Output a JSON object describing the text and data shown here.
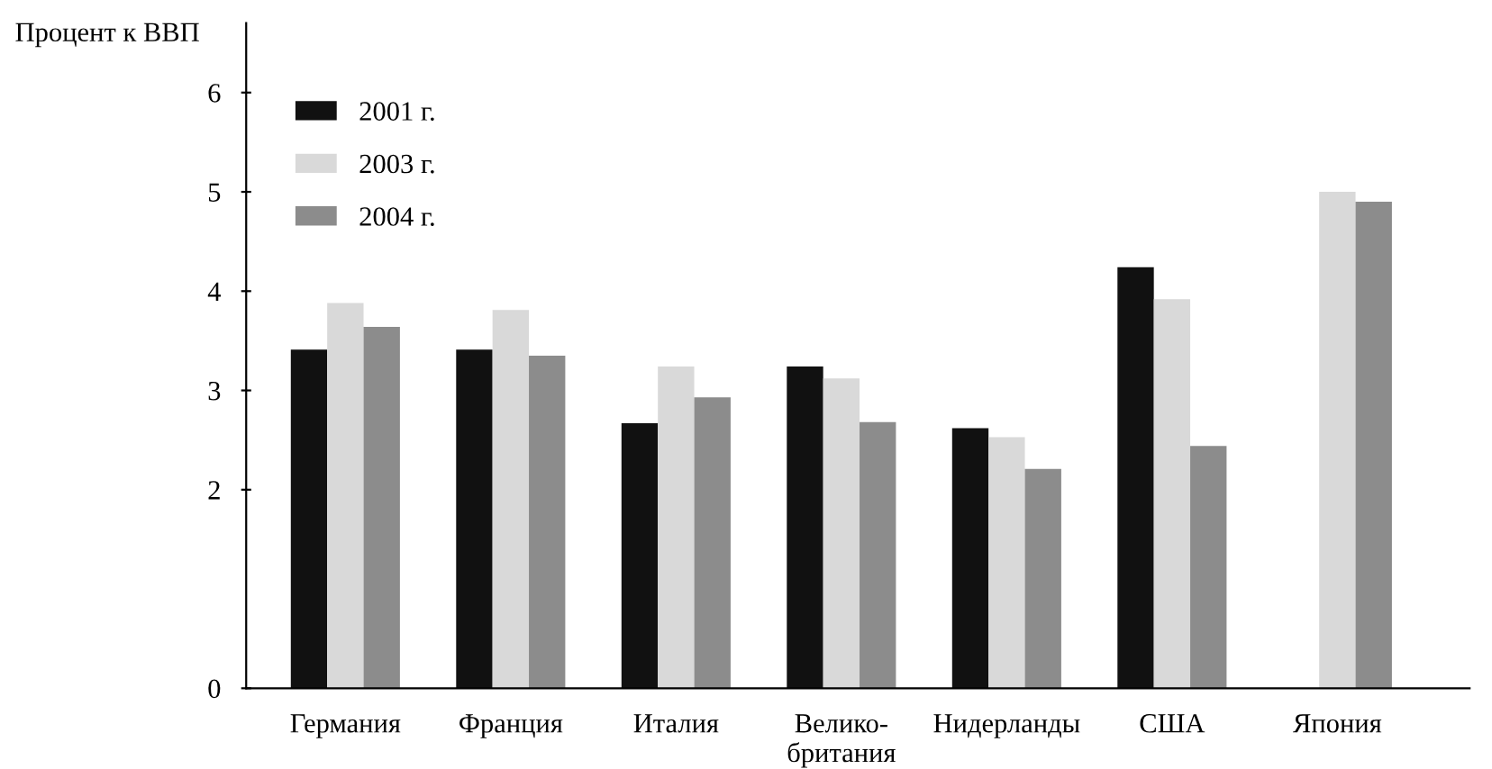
{
  "chart_data": {
    "type": "bar",
    "ylabel": "Процент к ВВП",
    "categories": [
      "Германия",
      "Франция",
      "Италия",
      "Велико-\nбритания",
      "Нидерланды",
      "США",
      "Япония"
    ],
    "series": [
      {
        "name": "2001 г.",
        "color": "#111111",
        "values": [
          3.41,
          3.41,
          2.67,
          3.24,
          2.62,
          4.24,
          null
        ]
      },
      {
        "name": "2003 г.",
        "color": "#d9d9d9",
        "values": [
          3.88,
          3.81,
          3.24,
          3.12,
          2.53,
          3.92,
          5.0
        ]
      },
      {
        "name": "2004 г.",
        "color": "#8c8c8c",
        "values": [
          3.64,
          3.35,
          2.93,
          2.68,
          2.21,
          2.44,
          4.9
        ]
      }
    ],
    "ylim": [
      0,
      6.7
    ],
    "yticks": [
      0,
      2,
      3,
      4,
      5,
      6
    ],
    "grid": false,
    "legend": "top left"
  }
}
